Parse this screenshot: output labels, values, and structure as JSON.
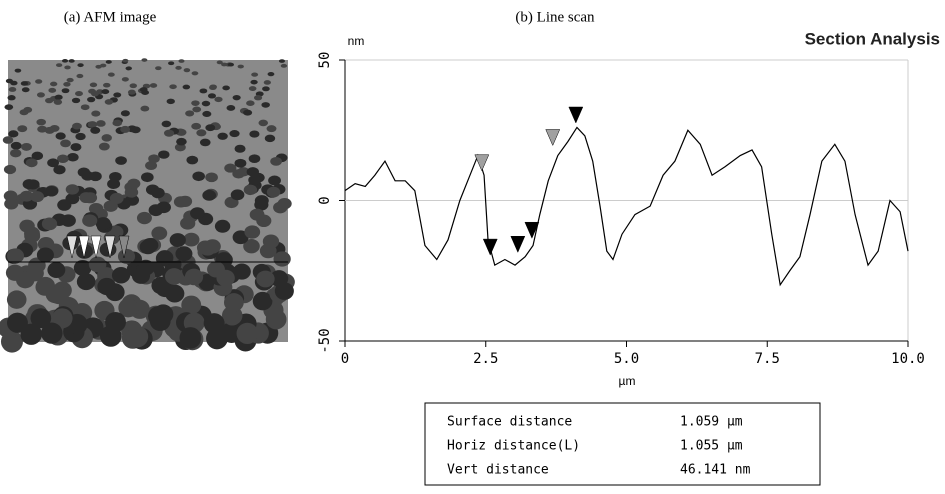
{
  "panel_a": {
    "label": "(a) AFM image"
  },
  "panel_b": {
    "label": "(b) Line scan"
  },
  "section_title": "Section Analysis",
  "chart_data": {
    "type": "line",
    "y_unit": "nm",
    "x_unit": "µm",
    "x": [
      0,
      0.18,
      0.36,
      0.53,
      0.71,
      0.89,
      1.07,
      1.24,
      1.42,
      1.63,
      1.83,
      2.04,
      2.22,
      2.36,
      2.47,
      2.54,
      2.66,
      2.84,
      3.02,
      3.2,
      3.34,
      3.46,
      3.61,
      3.78,
      3.96,
      4.12,
      4.26,
      4.4,
      4.53,
      4.65,
      4.76,
      4.92,
      5.15,
      5.42,
      5.65,
      5.86,
      6.09,
      6.31,
      6.52,
      6.75,
      7.02,
      7.23,
      7.4,
      7.58,
      7.73,
      7.9,
      8.08,
      8.26,
      8.47,
      8.7,
      8.88,
      9.06,
      9.29,
      9.47,
      9.68,
      9.86,
      10.0
    ],
    "series": [
      {
        "color": "#000000",
        "values": [
          3.5,
          6,
          5,
          9,
          14,
          7,
          7,
          3.5,
          -16,
          -21,
          -14,
          0,
          9,
          16,
          9,
          -14,
          -23,
          -21,
          -23,
          -20,
          -16,
          -5,
          7,
          16,
          21,
          26,
          23,
          14,
          -2,
          -18,
          -21,
          -12,
          -5,
          -2,
          9,
          14,
          25,
          20,
          9,
          12,
          16,
          18,
          12,
          -12,
          -30,
          -25,
          -20,
          -5,
          14,
          20,
          14,
          -5,
          -23,
          -18,
          0,
          -4,
          -18
        ]
      }
    ],
    "markers": [
      {
        "x": 2.43,
        "y": 12,
        "color": "#a0a0a0"
      },
      {
        "x": 3.69,
        "y": 21,
        "color": "#a0a0a0"
      },
      {
        "x": 2.58,
        "y": -18,
        "color": "#000000"
      },
      {
        "x": 3.07,
        "y": -17,
        "color": "#000000"
      },
      {
        "x": 3.32,
        "y": -12,
        "color": "#000000"
      },
      {
        "x": 4.1,
        "y": 29,
        "color": "#000000"
      }
    ],
    "xlim": [
      0,
      10.0
    ],
    "ylim": [
      -50,
      50
    ],
    "xticks": [
      0,
      {
        "value": 2.5,
        "label": "2.5"
      },
      {
        "value": 5,
        "label": "5.0"
      },
      {
        "value": 7.5,
        "label": "7.5"
      },
      {
        "value": 10,
        "label": "10.0"
      }
    ],
    "yticks": [
      50,
      0,
      -50
    ],
    "grid": true
  },
  "table": {
    "rows": [
      [
        "Surface distance",
        "1.059 µm"
      ],
      [
        "Horiz distance(L)",
        "1.055 µm"
      ],
      [
        "Vert distance",
        "46.141 nm"
      ]
    ]
  }
}
